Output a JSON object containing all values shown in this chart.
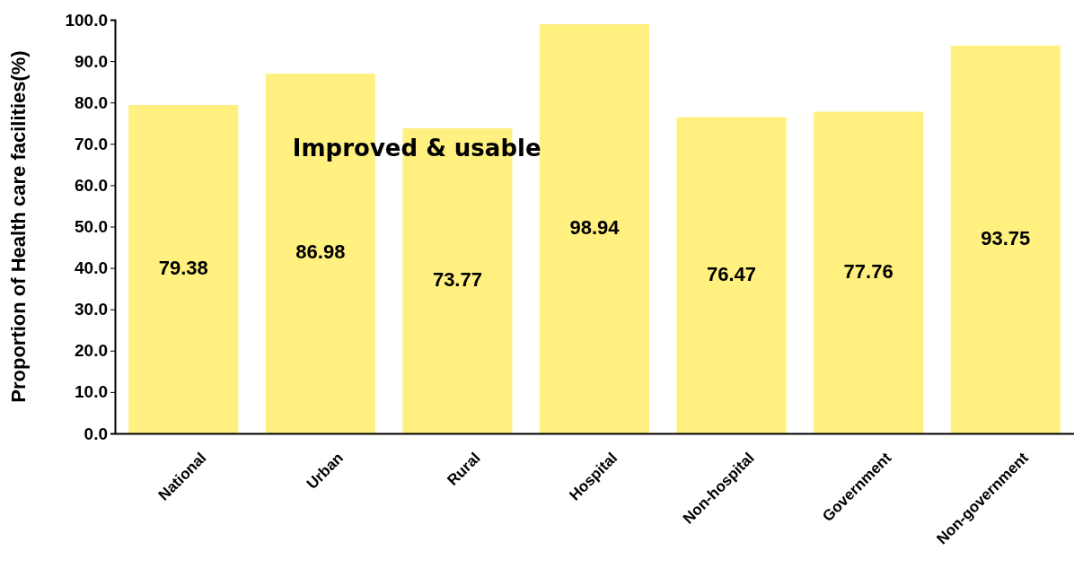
{
  "chart_data": {
    "type": "bar",
    "ylabel": "Proportion of Health care facilities(%)",
    "categories": [
      "National",
      "Urban",
      "Rural",
      "Hospital",
      "Non-hospital",
      "Government",
      "Non-government"
    ],
    "values": [
      79.38,
      86.98,
      73.77,
      98.94,
      76.47,
      77.76,
      93.75
    ],
    "color": "#fff07f",
    "ylim": [
      0,
      100
    ],
    "yticks": [
      {
        "value": 0,
        "label": "0.0"
      },
      {
        "value": 10,
        "label": "10.0"
      },
      {
        "value": 20,
        "label": "20.0"
      },
      {
        "value": 30,
        "label": "30.0"
      },
      {
        "value": 40,
        "label": "40.0"
      },
      {
        "value": 50,
        "label": "50.0"
      },
      {
        "value": 60,
        "label": "60.0"
      },
      {
        "value": 70,
        "label": "70.0"
      },
      {
        "value": 80,
        "label": "80.0"
      },
      {
        "value": 90,
        "label": "90.0"
      },
      {
        "value": 100,
        "label": "100.0"
      }
    ],
    "data_labels": true,
    "annotations": [
      "Improved & usable"
    ]
  }
}
